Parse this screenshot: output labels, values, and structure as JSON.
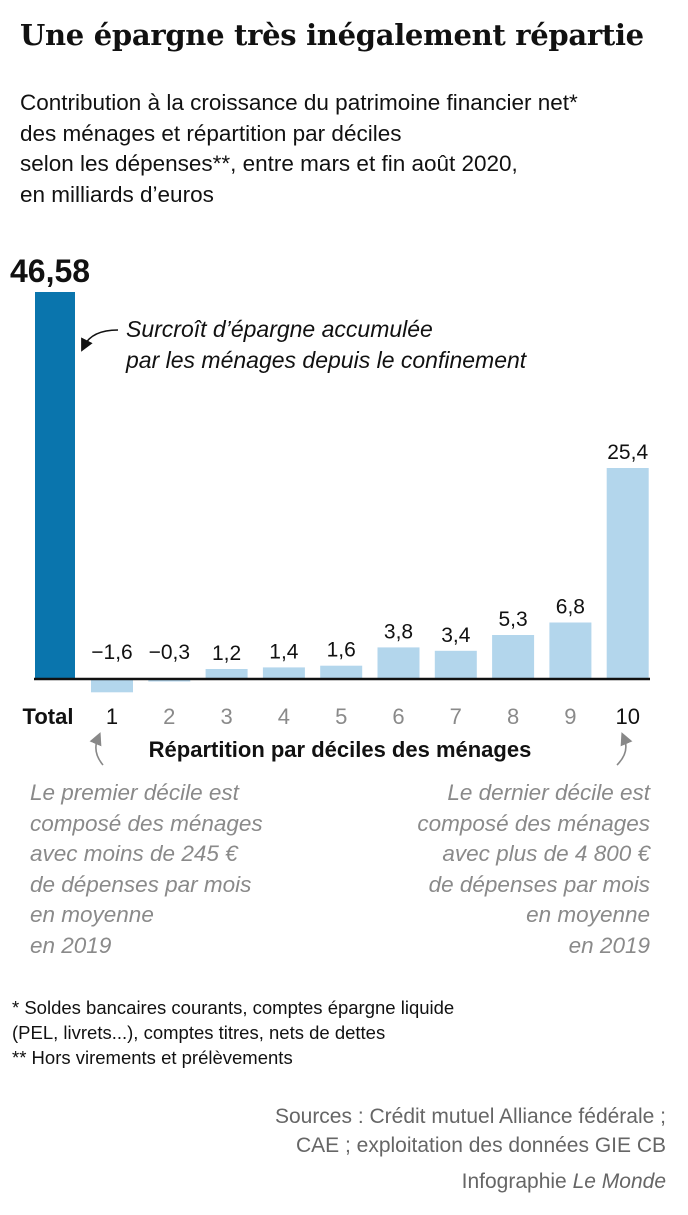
{
  "title": "Une épargne très inégalement répartie",
  "subtitle": [
    "Contribution à la croissance du patrimoine financier net*",
    "des ménages et répartition par déciles",
    "selon les dépenses**, entre mars et fin août 2020,",
    "en milliards d’euros"
  ],
  "chart_data": {
    "type": "bar",
    "categories": [
      "Total",
      "1",
      "2",
      "3",
      "4",
      "5",
      "6",
      "7",
      "8",
      "9",
      "10"
    ],
    "values": [
      46.58,
      -1.6,
      -0.3,
      1.2,
      1.4,
      1.6,
      3.8,
      3.4,
      5.3,
      6.8,
      25.4
    ],
    "value_labels": [
      "46,58",
      "−1,6",
      "−0,3",
      "1,2",
      "1,4",
      "1,6",
      "3,8",
      "3,4",
      "5,3",
      "6,8",
      "25,4"
    ],
    "xlabel": "Répartition par déciles des ménages",
    "total_annotation": [
      "Surcroît d’épargne accumulée",
      "par les ménages depuis le confinement"
    ],
    "colors": {
      "total": "#0a75ad",
      "deciles": "#b3d6ec",
      "axis": "#111111"
    }
  },
  "notes": {
    "first_decile": [
      "Le premier décile est",
      "composé des ménages",
      "avec moins de 245 €",
      "de dépenses par mois",
      "en moyenne",
      "en 2019"
    ],
    "last_decile": [
      "Le dernier décile est",
      "composé des ménages",
      "avec plus de 4 800 €",
      "de dépenses par mois",
      "en moyenne",
      "en 2019"
    ]
  },
  "footnotes": [
    "* Soldes bancaires courants, comptes épargne liquide",
    "(PEL, livrets...), comptes titres, nets de dettes",
    "** Hors virements et prélèvements"
  ],
  "sources": [
    "Sources : Crédit mutuel Alliance fédérale ;",
    "CAE ; exploitation des données GIE CB"
  ],
  "credit": {
    "prefix": "Infographie",
    "brand": "Le Monde"
  }
}
